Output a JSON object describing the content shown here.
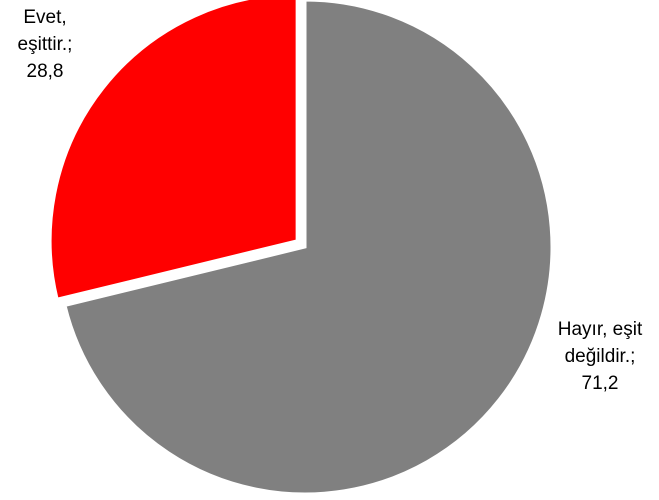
{
  "chart_data": {
    "type": "pie",
    "slices": [
      {
        "label_lines": [
          "Evet,",
          "eşittir.;",
          "28,8"
        ],
        "category": "Evet, eşittir.",
        "value": 28.8,
        "color": "#ff0000"
      },
      {
        "label_lines": [
          "Hayır, eşit",
          "değildir.;",
          "71,2"
        ],
        "category": "Hayır, eşit değildir.",
        "value": 71.2,
        "color": "#808080"
      }
    ],
    "start_angle": "top (12 o'clock), clockwise from the grey slice",
    "exploded_slice": "Evet, eşittir.",
    "slice_border_color": "#ffffff",
    "legend": "none"
  }
}
